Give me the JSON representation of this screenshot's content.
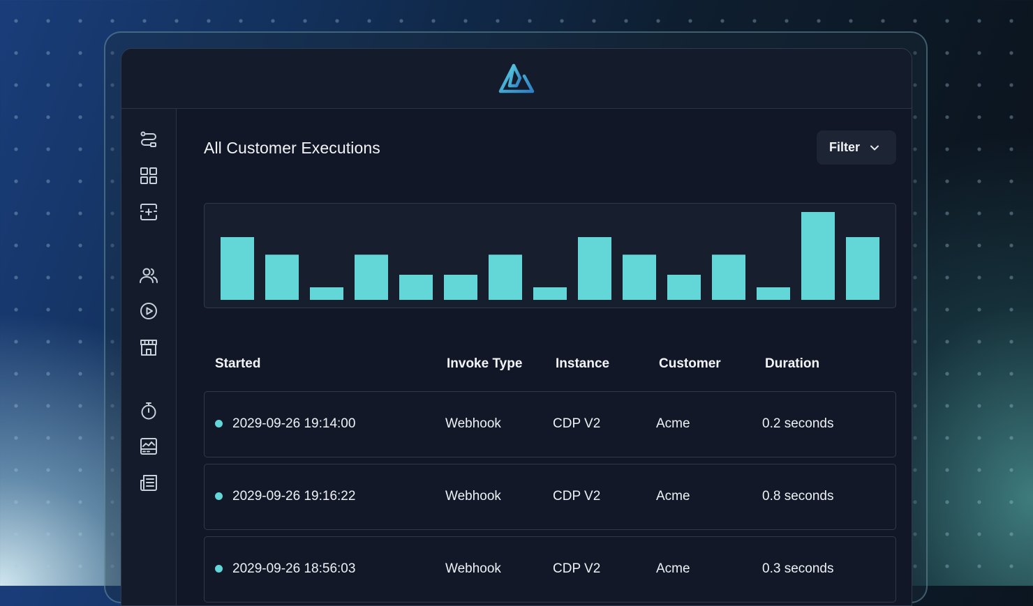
{
  "app": {
    "logo_icon": "triangle-logo-icon",
    "accent_color": "#63d6d8"
  },
  "sidebar": {
    "items": [
      {
        "icon": "workflow-icon"
      },
      {
        "icon": "grid-icon"
      },
      {
        "icon": "add-integration-icon"
      },
      {
        "icon": "users-icon"
      },
      {
        "icon": "play-circle-icon"
      },
      {
        "icon": "marketplace-icon"
      },
      {
        "icon": "stopwatch-icon"
      },
      {
        "icon": "monitor-chart-icon"
      },
      {
        "icon": "logs-icon"
      }
    ]
  },
  "main": {
    "title": "All Customer Executions",
    "filter_label": "Filter"
  },
  "chart_data": {
    "type": "bar",
    "title": "",
    "xlabel": "",
    "ylabel": "",
    "ylim": [
      0,
      7
    ],
    "grid": false,
    "color": "#63d6d8",
    "values": [
      5,
      3.6,
      1,
      3.6,
      2,
      2,
      3.6,
      1,
      5,
      3.6,
      2,
      3.6,
      1,
      7,
      5
    ]
  },
  "table": {
    "columns": [
      "Started",
      "Invoke Type",
      "Instance",
      "Customer",
      "Duration"
    ],
    "rows": [
      {
        "started": "2029-09-26 19:14:00",
        "invoke_type": "Webhook",
        "instance": "CDP V2",
        "customer": "Acme",
        "duration": "0.2 seconds"
      },
      {
        "started": "2029-09-26 19:16:22",
        "invoke_type": "Webhook",
        "instance": "CDP V2",
        "customer": "Acme",
        "duration": "0.8 seconds"
      },
      {
        "started": "2029-09-26 18:56:03",
        "invoke_type": "Webhook",
        "instance": "CDP V2",
        "customer": "Acme",
        "duration": "0.3 seconds"
      }
    ]
  }
}
